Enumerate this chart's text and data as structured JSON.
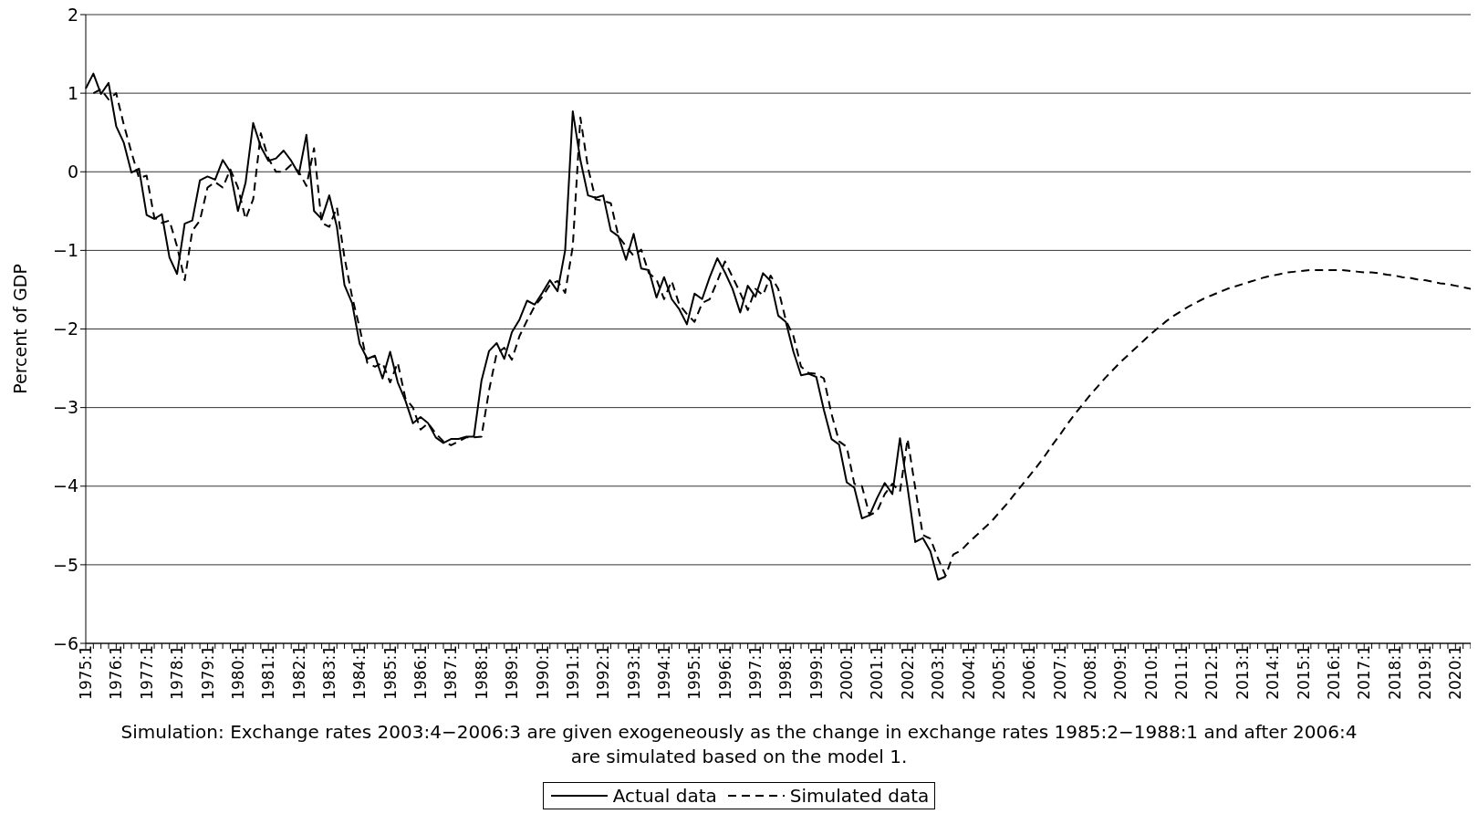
{
  "chart_data": {
    "type": "line",
    "ylabel": "Percent of GDP",
    "categories": [
      "1975:1",
      null,
      null,
      null,
      "1976:1",
      null,
      null,
      null,
      "1977:1",
      null,
      null,
      null,
      "1978:1",
      null,
      null,
      null,
      "1979:1",
      null,
      null,
      null,
      "1980:1",
      null,
      null,
      null,
      "1981:1",
      null,
      null,
      null,
      "1982:1",
      null,
      null,
      null,
      "1983:1",
      null,
      null,
      null,
      "1984:1",
      null,
      null,
      null,
      "1985:1",
      null,
      null,
      null,
      "1986:1",
      null,
      null,
      null,
      "1987:1",
      null,
      null,
      null,
      "1988:1",
      null,
      null,
      null,
      "1989:1",
      null,
      null,
      null,
      "1990:1",
      null,
      null,
      null,
      "1991:1",
      null,
      null,
      null,
      "1992:1",
      null,
      null,
      null,
      "1993:1",
      null,
      null,
      null,
      "1994:1",
      null,
      null,
      null,
      "1995:1",
      null,
      null,
      null,
      "1996:1",
      null,
      null,
      null,
      "1997:1",
      null,
      null,
      null,
      "1998:1",
      null,
      null,
      null,
      "1999:1",
      null,
      null,
      null,
      "2000:1",
      null,
      null,
      null,
      "2001:1",
      null,
      null,
      null,
      "2002:1",
      null,
      null,
      null,
      "2003:1",
      null,
      null,
      null,
      "2004:1",
      null,
      null,
      null,
      "2005:1",
      null,
      null,
      null,
      "2006:1",
      null,
      null,
      null,
      "2007:1",
      null,
      null,
      null,
      "2008:1",
      null,
      null,
      null,
      "2009:1",
      null,
      null,
      null,
      "2010:1",
      null,
      null,
      null,
      "2011:1",
      null,
      null,
      null,
      "2012:1",
      null,
      null,
      null,
      "2013:1",
      null,
      null,
      null,
      "2014:1",
      null,
      null,
      null,
      "2015:1",
      null,
      null,
      null,
      "2016:1",
      null,
      null,
      null,
      "2017:1",
      null,
      null,
      null,
      "2018:1",
      null,
      null,
      null,
      "2019:1",
      null,
      null,
      null,
      "2020:1",
      null,
      null
    ],
    "series": [
      {
        "name": "Actual data",
        "color": "#000000",
        "line_style": "solid",
        "values": [
          1.06,
          1.25,
          0.99,
          1.13,
          0.58,
          0.37,
          -0.01,
          0.04,
          -0.55,
          -0.6,
          -0.54,
          -1.09,
          -1.3,
          -0.66,
          -0.62,
          -0.11,
          -0.06,
          -0.1,
          0.15,
          0.0,
          -0.5,
          -0.14,
          0.62,
          0.32,
          0.14,
          0.17,
          0.27,
          0.14,
          -0.03,
          0.47,
          -0.5,
          -0.6,
          -0.3,
          -0.7,
          -1.44,
          -1.67,
          -2.19,
          -2.38,
          -2.34,
          -2.63,
          -2.29,
          -2.68,
          -2.91,
          -3.2,
          -3.12,
          -3.2,
          -3.38,
          -3.45,
          -3.4,
          -3.4,
          -3.37,
          -3.37,
          -2.66,
          -2.28,
          -2.18,
          -2.38,
          -2.04,
          -1.88,
          -1.64,
          -1.69,
          -1.54,
          -1.38,
          -1.52,
          -1.0,
          0.77,
          0.15,
          -0.3,
          -0.33,
          -0.3,
          -0.75,
          -0.82,
          -1.12,
          -0.79,
          -1.23,
          -1.25,
          -1.6,
          -1.34,
          -1.62,
          -1.75,
          -1.94,
          -1.55,
          -1.62,
          -1.34,
          -1.1,
          -1.28,
          -1.49,
          -1.79,
          -1.45,
          -1.59,
          -1.29,
          -1.39,
          -1.83,
          -1.91,
          -2.29,
          -2.59,
          -2.57,
          -2.61,
          -3.03,
          -3.4,
          -3.47,
          -3.95,
          -4.02,
          -4.41,
          -4.37,
          -4.15,
          -3.96,
          -4.1,
          -3.39,
          -4.02,
          -4.71,
          -4.66,
          -4.83,
          -5.19,
          -5.15,
          null,
          null,
          null,
          null,
          null,
          null,
          null,
          null,
          null,
          null,
          null,
          null,
          null,
          null,
          null,
          null,
          null,
          null,
          null,
          null,
          null,
          null,
          null,
          null,
          null,
          null,
          null,
          null,
          null,
          null,
          null,
          null,
          null,
          null,
          null,
          null,
          null,
          null,
          null,
          null,
          null,
          null,
          null,
          null,
          null,
          null,
          null,
          null,
          null,
          null,
          null,
          null,
          null,
          null,
          null,
          null,
          null,
          null,
          null,
          null,
          null,
          null,
          null,
          null,
          null,
          null,
          null,
          null,
          null
        ]
      },
      {
        "name": "Simulated data",
        "color": "#000000",
        "line_style": "dashed",
        "values": [
          null,
          1.0,
          1.05,
          0.92,
          1.0,
          0.6,
          0.25,
          -0.08,
          -0.05,
          -0.58,
          -0.65,
          -0.62,
          -0.95,
          -1.38,
          -0.75,
          -0.62,
          -0.2,
          -0.13,
          -0.2,
          0.03,
          -0.2,
          -0.6,
          -0.35,
          0.49,
          0.17,
          0.0,
          0.0,
          0.09,
          0.0,
          -0.18,
          0.3,
          -0.65,
          -0.7,
          -0.45,
          -1.09,
          -1.59,
          -1.99,
          -2.43,
          -2.48,
          -2.43,
          -2.68,
          -2.43,
          -2.88,
          -3.0,
          -3.28,
          -3.2,
          -3.33,
          -3.43,
          -3.48,
          -3.43,
          -3.38,
          -3.38,
          -3.37,
          -2.78,
          -2.31,
          -2.24,
          -2.39,
          -2.09,
          -1.89,
          -1.71,
          -1.59,
          -1.44,
          -1.39,
          -1.54,
          -0.95,
          0.69,
          0.05,
          -0.35,
          -0.37,
          -0.4,
          -0.82,
          -0.95,
          -1.07,
          -0.99,
          -1.29,
          -1.37,
          -1.62,
          -1.39,
          -1.69,
          -1.81,
          -1.91,
          -1.67,
          -1.62,
          -1.39,
          -1.14,
          -1.34,
          -1.54,
          -1.76,
          -1.49,
          -1.57,
          -1.32,
          -1.49,
          -1.89,
          -2.09,
          -2.48,
          -2.56,
          -2.57,
          -2.63,
          -3.08,
          -3.43,
          -3.5,
          -3.97,
          -4.0,
          -4.37,
          -4.32,
          -4.1,
          -3.97,
          -4.07,
          -3.4,
          -4.02,
          -4.62,
          -4.67,
          -4.92,
          -5.14,
          -4.87,
          -4.82,
          -4.72,
          -4.63,
          -4.54,
          -4.45,
          -4.34,
          -4.23,
          -4.11,
          -3.99,
          -3.87,
          -3.75,
          -3.62,
          -3.48,
          -3.35,
          -3.21,
          -3.08,
          -2.96,
          -2.84,
          -2.73,
          -2.62,
          -2.52,
          -2.42,
          -2.33,
          -2.24,
          -2.15,
          -2.06,
          -1.98,
          -1.9,
          -1.83,
          -1.77,
          -1.71,
          -1.66,
          -1.61,
          -1.57,
          -1.53,
          -1.49,
          -1.46,
          -1.43,
          -1.4,
          -1.37,
          -1.34,
          -1.32,
          -1.3,
          -1.28,
          -1.27,
          -1.26,
          -1.25,
          -1.25,
          -1.25,
          -1.25,
          -1.25,
          -1.26,
          -1.27,
          -1.28,
          -1.28,
          -1.29,
          -1.31,
          -1.32,
          -1.34,
          -1.35,
          -1.37,
          -1.38,
          -1.4,
          -1.42,
          -1.43,
          -1.45,
          -1.47,
          -1.49
        ]
      }
    ],
    "ylim": [
      -6,
      2
    ],
    "yticks": [
      -6,
      -5,
      -4,
      -3,
      -2,
      -1,
      0,
      1,
      2
    ],
    "grid": "y",
    "legend": "bottom",
    "annotations": [
      "Simulation: Exchange rates 2003:4−2006:3 are given exogeneously as the change in exchange rates 1985:2−1988:1 and after 2006:4 are simulated based on the model 1."
    ]
  }
}
